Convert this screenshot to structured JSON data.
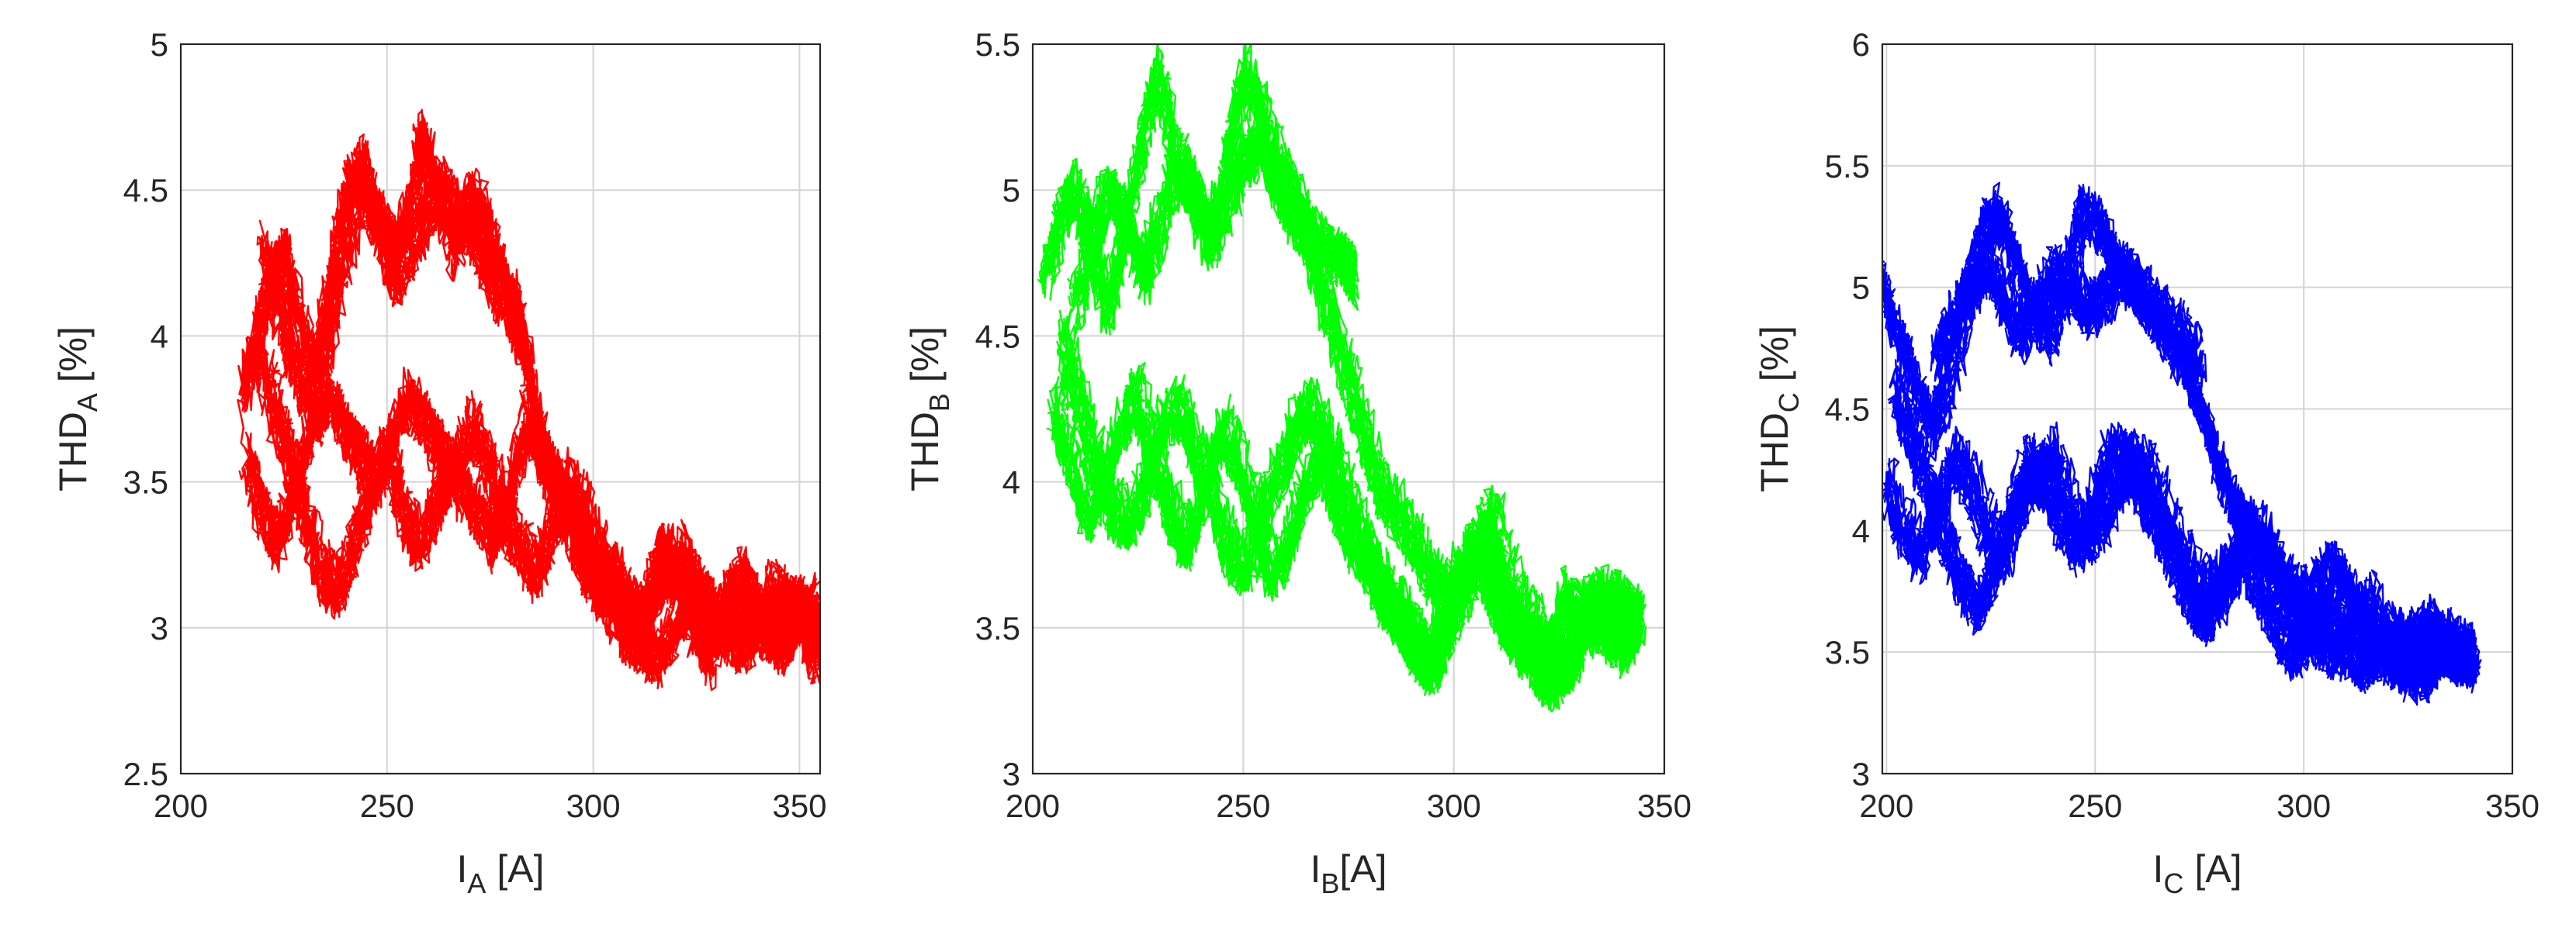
{
  "chart_data": [
    {
      "type": "line",
      "xlabel": {
        "main": "I",
        "sub": "A",
        "unit": " [A]"
      },
      "ylabel": {
        "main": "THD",
        "sub": "A",
        "unit": " [%]"
      },
      "xlim": [
        200,
        355
      ],
      "ylim": [
        2.5,
        5
      ],
      "xticks": [
        "200",
        "250",
        "300",
        "350"
      ],
      "yticks": [
        "2.5",
        "3",
        "3.5",
        "4",
        "4.5",
        "5"
      ],
      "grid": true,
      "color": "#ff0000",
      "series": [
        {
          "x": [
            215,
            218,
            222,
            225,
            228,
            232,
            236,
            240,
            244,
            248,
            252,
            256,
            258,
            262,
            266,
            270,
            274,
            278,
            281,
            284,
            286,
            288,
            290,
            292,
            294,
            296,
            298,
            300,
            302,
            305,
            308,
            312,
            316,
            320,
            324,
            328,
            332,
            336,
            340,
            344,
            348,
            352,
            355
          ],
          "y": [
            3.8,
            4.0,
            4.2,
            4.3,
            4.1,
            3.9,
            4.2,
            4.5,
            4.6,
            4.4,
            4.3,
            4.5,
            4.7,
            4.5,
            4.3,
            4.5,
            4.4,
            4.2,
            4.1,
            3.9,
            3.7,
            3.6,
            3.5,
            3.45,
            3.4,
            3.3,
            3.25,
            3.2,
            3.15,
            3.2,
            3.1,
            3.05,
            3.3,
            3.2,
            3.0,
            2.9,
            3.1,
            3.2,
            3.05,
            3.0,
            3.1,
            3.05,
            3.0
          ]
        },
        {
          "x": [
            216,
            220,
            224,
            228,
            232,
            236,
            240,
            244,
            248,
            252,
            256,
            260,
            264,
            268,
            272,
            276,
            280,
            284,
            288,
            292,
            296,
            300,
            304,
            308,
            312,
            316,
            320,
            324,
            328,
            332,
            336,
            340,
            344,
            348,
            352,
            355
          ],
          "y": [
            3.6,
            3.4,
            3.3,
            3.5,
            3.7,
            3.8,
            3.7,
            3.6,
            3.5,
            3.7,
            3.8,
            3.7,
            3.6,
            3.5,
            3.4,
            3.3,
            3.5,
            3.7,
            3.6,
            3.5,
            3.3,
            3.2,
            3.1,
            3.0,
            2.95,
            2.9,
            3.0,
            3.15,
            3.1,
            3.0,
            2.95,
            3.0,
            3.15,
            3.1,
            3.0,
            2.9
          ]
        },
        {
          "x": [
            218,
            222,
            226,
            230,
            234,
            238,
            242,
            246,
            250,
            254,
            258,
            262,
            266,
            270,
            274,
            278,
            282,
            286,
            290,
            294,
            298,
            302,
            306,
            310,
            314,
            318,
            322,
            326,
            330,
            334,
            338,
            342,
            346,
            350,
            354
          ],
          "y": [
            4.0,
            3.8,
            3.6,
            3.4,
            3.2,
            3.15,
            3.3,
            3.5,
            3.6,
            3.4,
            3.3,
            3.45,
            3.55,
            3.7,
            3.6,
            3.4,
            3.3,
            3.2,
            3.35,
            3.5,
            3.4,
            3.25,
            3.15,
            3.0,
            3.1,
            3.2,
            3.25,
            3.1,
            3.0,
            3.05,
            3.1,
            3.0,
            2.95,
            3.05,
            3.1
          ]
        },
        {
          "x": [
            220,
            224,
            228,
            232,
            236,
            240,
            244,
            248,
            252,
            256,
            260,
            264,
            268,
            272,
            276,
            280,
            283
          ],
          "y": [
            4.3,
            4.1,
            3.9,
            3.8,
            4.0,
            4.3,
            4.5,
            4.4,
            4.2,
            4.3,
            4.45,
            4.5,
            4.4,
            4.35,
            4.2,
            4.1,
            4.0
          ]
        }
      ]
    },
    {
      "type": "line",
      "xlabel": {
        "main": "I",
        "sub": "B",
        "unit": "[A]"
      },
      "ylabel": {
        "main": "THD",
        "sub": "B",
        "unit": " [%]"
      },
      "xlim": [
        200,
        350
      ],
      "ylim": [
        3,
        5.5
      ],
      "xticks": [
        "200",
        "250",
        "300",
        "350"
      ],
      "yticks": [
        "3",
        "3.5",
        "4",
        "4.5",
        "5",
        "5.5"
      ],
      "grid": true,
      "color": "#00ff00",
      "series": [
        {
          "x": [
            203,
            206,
            210,
            214,
            218,
            222,
            226,
            230,
            234,
            238,
            242,
            246,
            250,
            254,
            258,
            262,
            266,
            270,
            274,
            278,
            282,
            286,
            290,
            294,
            298,
            302,
            306,
            310,
            314,
            318,
            322,
            326,
            330,
            334,
            338,
            342,
            344
          ],
          "y": [
            4.7,
            4.9,
            5.0,
            4.8,
            4.6,
            4.9,
            5.2,
            5.4,
            5.1,
            5.0,
            4.8,
            5.1,
            5.4,
            5.3,
            5.1,
            5.0,
            4.8,
            4.6,
            4.4,
            4.2,
            4.0,
            3.9,
            3.8,
            3.7,
            3.6,
            3.7,
            3.8,
            3.6,
            3.5,
            3.45,
            3.4,
            3.6,
            3.55,
            3.5,
            3.6,
            3.55,
            3.5
          ]
        },
        {
          "x": [
            205,
            209,
            213,
            217,
            221,
            225,
            229,
            233,
            237,
            241,
            245,
            249,
            253,
            257,
            261,
            265,
            269,
            273,
            277,
            281,
            285,
            289,
            293,
            297,
            301,
            305,
            309,
            313,
            317,
            321,
            325,
            329,
            333,
            337,
            341,
            344
          ],
          "y": [
            4.3,
            4.1,
            3.9,
            4.0,
            4.2,
            4.3,
            4.1,
            3.9,
            3.8,
            4.0,
            4.2,
            4.1,
            3.9,
            3.7,
            3.8,
            4.0,
            4.1,
            3.9,
            3.8,
            3.7,
            3.6,
            3.5,
            3.4,
            3.5,
            3.7,
            3.8,
            3.9,
            3.7,
            3.55,
            3.5,
            3.35,
            3.4,
            3.6,
            3.5,
            3.45,
            3.55
          ]
        },
        {
          "x": [
            207,
            211,
            215,
            219,
            223,
            227,
            231,
            235,
            239,
            243,
            247,
            251,
            255,
            259,
            263,
            267,
            271,
            275,
            279,
            283,
            287,
            291,
            295,
            299,
            303,
            307,
            311,
            315,
            319,
            323,
            327,
            331,
            335,
            339,
            343
          ],
          "y": [
            4.5,
            4.3,
            4.1,
            3.9,
            3.85,
            4.0,
            4.2,
            4.25,
            4.1,
            3.95,
            3.75,
            3.7,
            3.9,
            4.05,
            4.2,
            4.25,
            4.1,
            3.95,
            3.8,
            3.6,
            3.55,
            3.45,
            3.35,
            3.5,
            3.65,
            3.75,
            3.55,
            3.45,
            3.4,
            3.3,
            3.45,
            3.55,
            3.6,
            3.5,
            3.55
          ]
        },
        {
          "x": [
            210,
            214,
            218,
            222,
            226,
            230,
            234,
            238,
            242,
            246,
            250,
            254,
            258,
            262,
            266,
            270,
            274,
            276
          ],
          "y": [
            4.6,
            4.8,
            5.0,
            4.9,
            4.7,
            4.85,
            5.05,
            5.0,
            4.85,
            4.95,
            5.1,
            5.15,
            5.0,
            4.9,
            4.85,
            4.8,
            4.75,
            4.7
          ]
        }
      ]
    },
    {
      "type": "line",
      "xlabel": {
        "main": "I",
        "sub": "C",
        "unit": " [A]"
      },
      "ylabel": {
        "main": "THD",
        "sub": "C",
        "unit": " [%]"
      },
      "xlim": [
        199,
        350
      ],
      "ylim": [
        3,
        6
      ],
      "xticks": [
        "200",
        "250",
        "300",
        "350"
      ],
      "yticks": [
        "3",
        "3.5",
        "4",
        "4.5",
        "5",
        "5.5",
        "6"
      ],
      "grid": true,
      "color": "#0000ff",
      "series": [
        {
          "x": [
            199,
            203,
            207,
            211,
            215,
            219,
            223,
            227,
            231,
            235,
            239,
            243,
            247,
            251,
            255,
            259,
            263,
            267,
            271,
            275,
            279,
            283,
            287,
            291,
            295,
            299,
            303,
            307,
            311,
            315,
            319,
            323,
            327,
            331,
            335,
            339,
            341
          ],
          "y": [
            5.0,
            4.8,
            4.6,
            4.4,
            4.6,
            4.9,
            5.2,
            5.3,
            5.1,
            4.9,
            4.8,
            5.0,
            5.3,
            5.25,
            5.1,
            5.0,
            4.9,
            4.8,
            4.7,
            4.5,
            4.3,
            4.1,
            4.0,
            3.9,
            3.8,
            3.7,
            3.75,
            3.85,
            3.75,
            3.6,
            3.5,
            3.45,
            3.55,
            3.6,
            3.5,
            3.45,
            3.5
          ]
        },
        {
          "x": [
            200,
            204,
            208,
            212,
            216,
            220,
            224,
            228,
            232,
            236,
            240,
            244,
            248,
            252,
            256,
            260,
            264,
            268,
            272,
            276,
            280,
            284,
            288,
            292,
            296,
            300,
            304,
            308,
            312,
            316,
            320,
            324,
            328,
            332,
            336,
            340
          ],
          "y": [
            4.2,
            4.0,
            3.9,
            4.1,
            4.3,
            4.2,
            4.0,
            3.9,
            4.1,
            4.25,
            4.3,
            4.1,
            3.95,
            4.05,
            4.2,
            4.3,
            4.2,
            4.0,
            3.85,
            3.75,
            3.8,
            3.95,
            4.0,
            3.9,
            3.75,
            3.65,
            3.55,
            3.5,
            3.6,
            3.7,
            3.55,
            3.45,
            3.4,
            3.55,
            3.5,
            3.45
          ]
        },
        {
          "x": [
            202,
            206,
            210,
            214,
            218,
            222,
            226,
            230,
            234,
            238,
            242,
            246,
            250,
            254,
            258,
            262,
            266,
            270,
            274,
            278,
            282,
            286,
            290,
            294,
            298,
            302,
            306,
            310,
            314,
            318,
            322,
            326,
            330,
            334,
            338
          ],
          "y": [
            4.6,
            4.4,
            4.2,
            4.0,
            3.8,
            3.7,
            3.85,
            4.1,
            4.3,
            4.2,
            4.05,
            3.95,
            4.15,
            4.35,
            4.3,
            4.15,
            4.0,
            3.85,
            3.7,
            3.65,
            3.8,
            3.9,
            3.75,
            3.6,
            3.5,
            3.6,
            3.7,
            3.55,
            3.45,
            3.5,
            3.6,
            3.55,
            3.45,
            3.5,
            3.55
          ]
        },
        {
          "x": [
            212,
            216,
            220,
            224,
            228,
            232,
            236,
            240,
            244,
            248,
            252,
            256,
            260,
            264,
            268,
            272,
            275
          ],
          "y": [
            4.7,
            4.85,
            5.0,
            5.1,
            4.95,
            4.8,
            4.9,
            5.05,
            5.0,
            4.9,
            4.95,
            5.05,
            5.0,
            4.9,
            4.85,
            4.75,
            4.7
          ]
        }
      ]
    }
  ]
}
